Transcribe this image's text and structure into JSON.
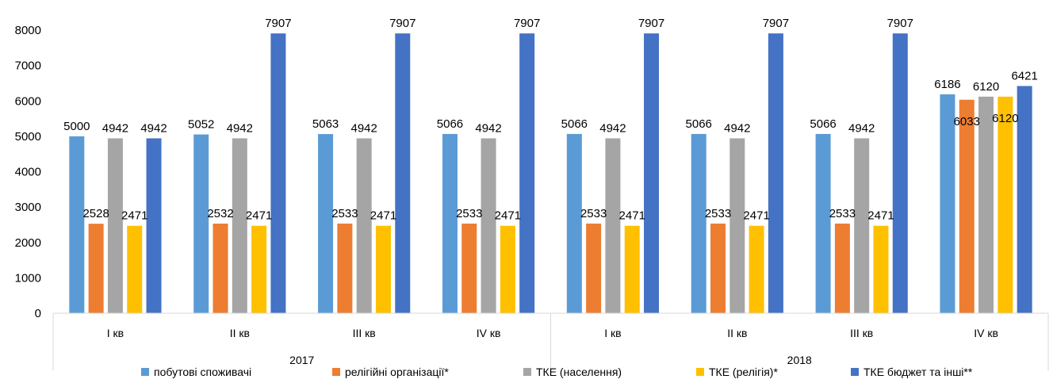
{
  "chart_data": {
    "type": "bar",
    "title": "",
    "xlabel": "",
    "ylabel": "",
    "ylim": [
      0,
      8000
    ],
    "yticks": [
      0,
      1000,
      2000,
      3000,
      4000,
      5000,
      6000,
      7000,
      8000
    ],
    "grid": false,
    "legend_position": "bottom",
    "categories": [
      "I кв",
      "II кв",
      "III кв",
      "IV кв",
      "I кв",
      "II кв",
      "III кв",
      "IV кв"
    ],
    "groups": [
      {
        "label": "2017",
        "span": [
          0,
          3
        ]
      },
      {
        "label": "2018",
        "span": [
          4,
          7
        ]
      }
    ],
    "series": [
      {
        "name": "побутові споживачі",
        "color": "#5B9BD5",
        "values": [
          5000,
          5052,
          5063,
          5066,
          5066,
          5066,
          5066,
          6186
        ]
      },
      {
        "name": "релігійні організації*",
        "color": "#ED7D31",
        "values": [
          2528,
          2532,
          2533,
          2533,
          2533,
          2533,
          2533,
          6033
        ]
      },
      {
        "name": "ТКЕ (населення)",
        "color": "#A5A5A5",
        "values": [
          4942,
          4942,
          4942,
          4942,
          4942,
          4942,
          4942,
          6120
        ]
      },
      {
        "name": "ТКЕ (релігія)*",
        "color": "#FFC000",
        "values": [
          2471,
          2471,
          2471,
          2471,
          2471,
          2471,
          2471,
          6120
        ]
      },
      {
        "name": "ТКЕ бюджет та інші**",
        "color": "#4472C4",
        "values": [
          4942,
          7907,
          7907,
          7907,
          7907,
          7907,
          7907,
          6421
        ]
      }
    ]
  }
}
